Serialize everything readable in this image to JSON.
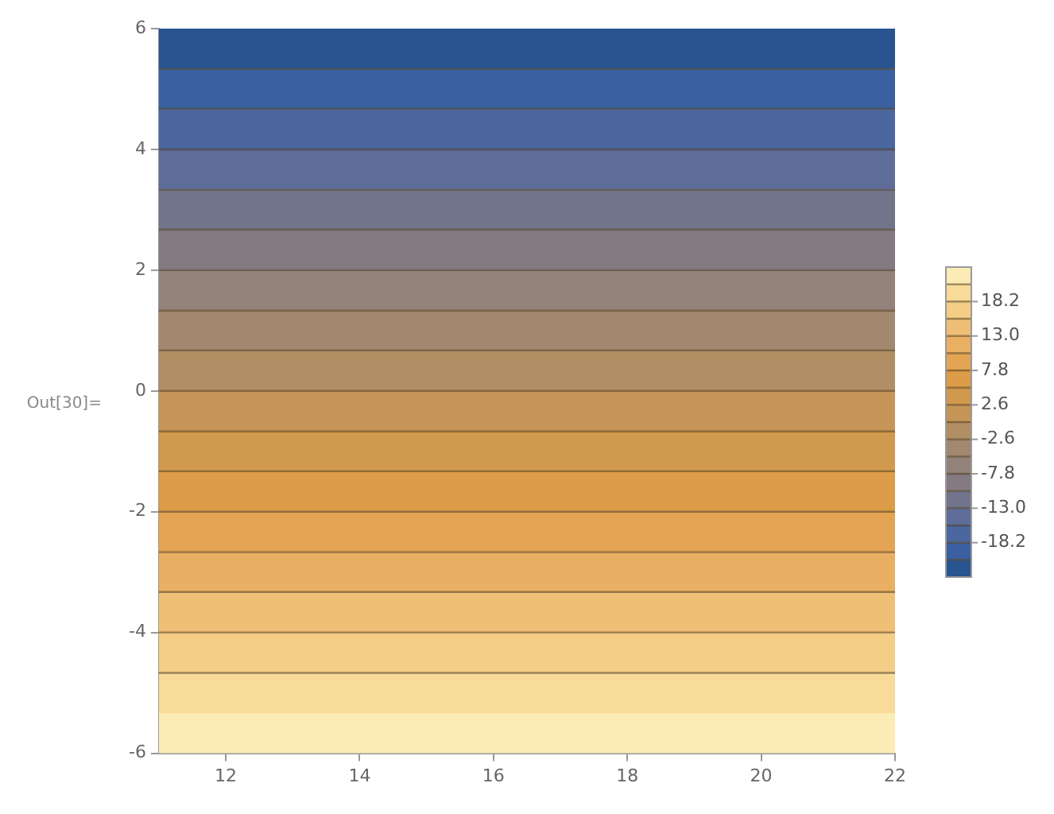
{
  "chart_data": {
    "type": "heatmap",
    "y": [
      5.67,
      5.0,
      4.33,
      3.67,
      3.0,
      2.33,
      1.67,
      1.0,
      0.33,
      -0.33,
      -1.0,
      -1.67,
      -2.33,
      -3.0,
      -3.67,
      -4.33,
      -5.0,
      -5.67
    ],
    "cells": [
      [
        -22.1
      ],
      [
        -19.5
      ],
      [
        -16.9
      ],
      [
        -14.3
      ],
      [
        -11.7
      ],
      [
        -9.1
      ],
      [
        -6.5
      ],
      [
        -3.9
      ],
      [
        -1.3
      ],
      [
        1.3
      ],
      [
        3.9
      ],
      [
        6.5
      ],
      [
        9.1
      ],
      [
        11.7
      ],
      [
        14.3
      ],
      [
        16.9
      ],
      [
        19.5
      ],
      [
        22.1
      ]
    ],
    "xlim": [
      11,
      22
    ],
    "xticks": [
      12,
      14,
      16,
      18,
      20,
      22
    ],
    "ylim": [
      -6,
      6
    ],
    "yticks": [
      -6,
      -4,
      -2,
      0,
      2,
      4,
      6
    ],
    "clim": [
      -23.4,
      23.4
    ],
    "cticks": [
      -18.2,
      {
        "value": -13,
        "label": "-13.0"
      },
      -7.8,
      -2.6,
      2.6,
      7.8,
      {
        "value": 13,
        "label": "13.0"
      },
      18.2
    ],
    "ref_lines": [
      {
        "axis": "y",
        "value": 5.33
      },
      {
        "axis": "y",
        "value": 4.67
      },
      {
        "axis": "y",
        "value": 4
      },
      {
        "axis": "y",
        "value": 3.33
      },
      {
        "axis": "y",
        "value": 2.67
      },
      {
        "axis": "y",
        "value": 2
      },
      {
        "axis": "y",
        "value": 1.33
      },
      {
        "axis": "y",
        "value": 0.67
      },
      {
        "axis": "y",
        "value": 0
      },
      {
        "axis": "y",
        "value": -0.67
      },
      {
        "axis": "y",
        "value": -1.33
      },
      {
        "axis": "y",
        "value": -2
      },
      {
        "axis": "y",
        "value": -2.67
      },
      {
        "axis": "y",
        "value": -3.33
      },
      {
        "axis": "y",
        "value": -4
      },
      {
        "axis": "y",
        "value": -4.67
      }
    ],
    "annotations": [
      "Out[30]="
    ]
  }
}
